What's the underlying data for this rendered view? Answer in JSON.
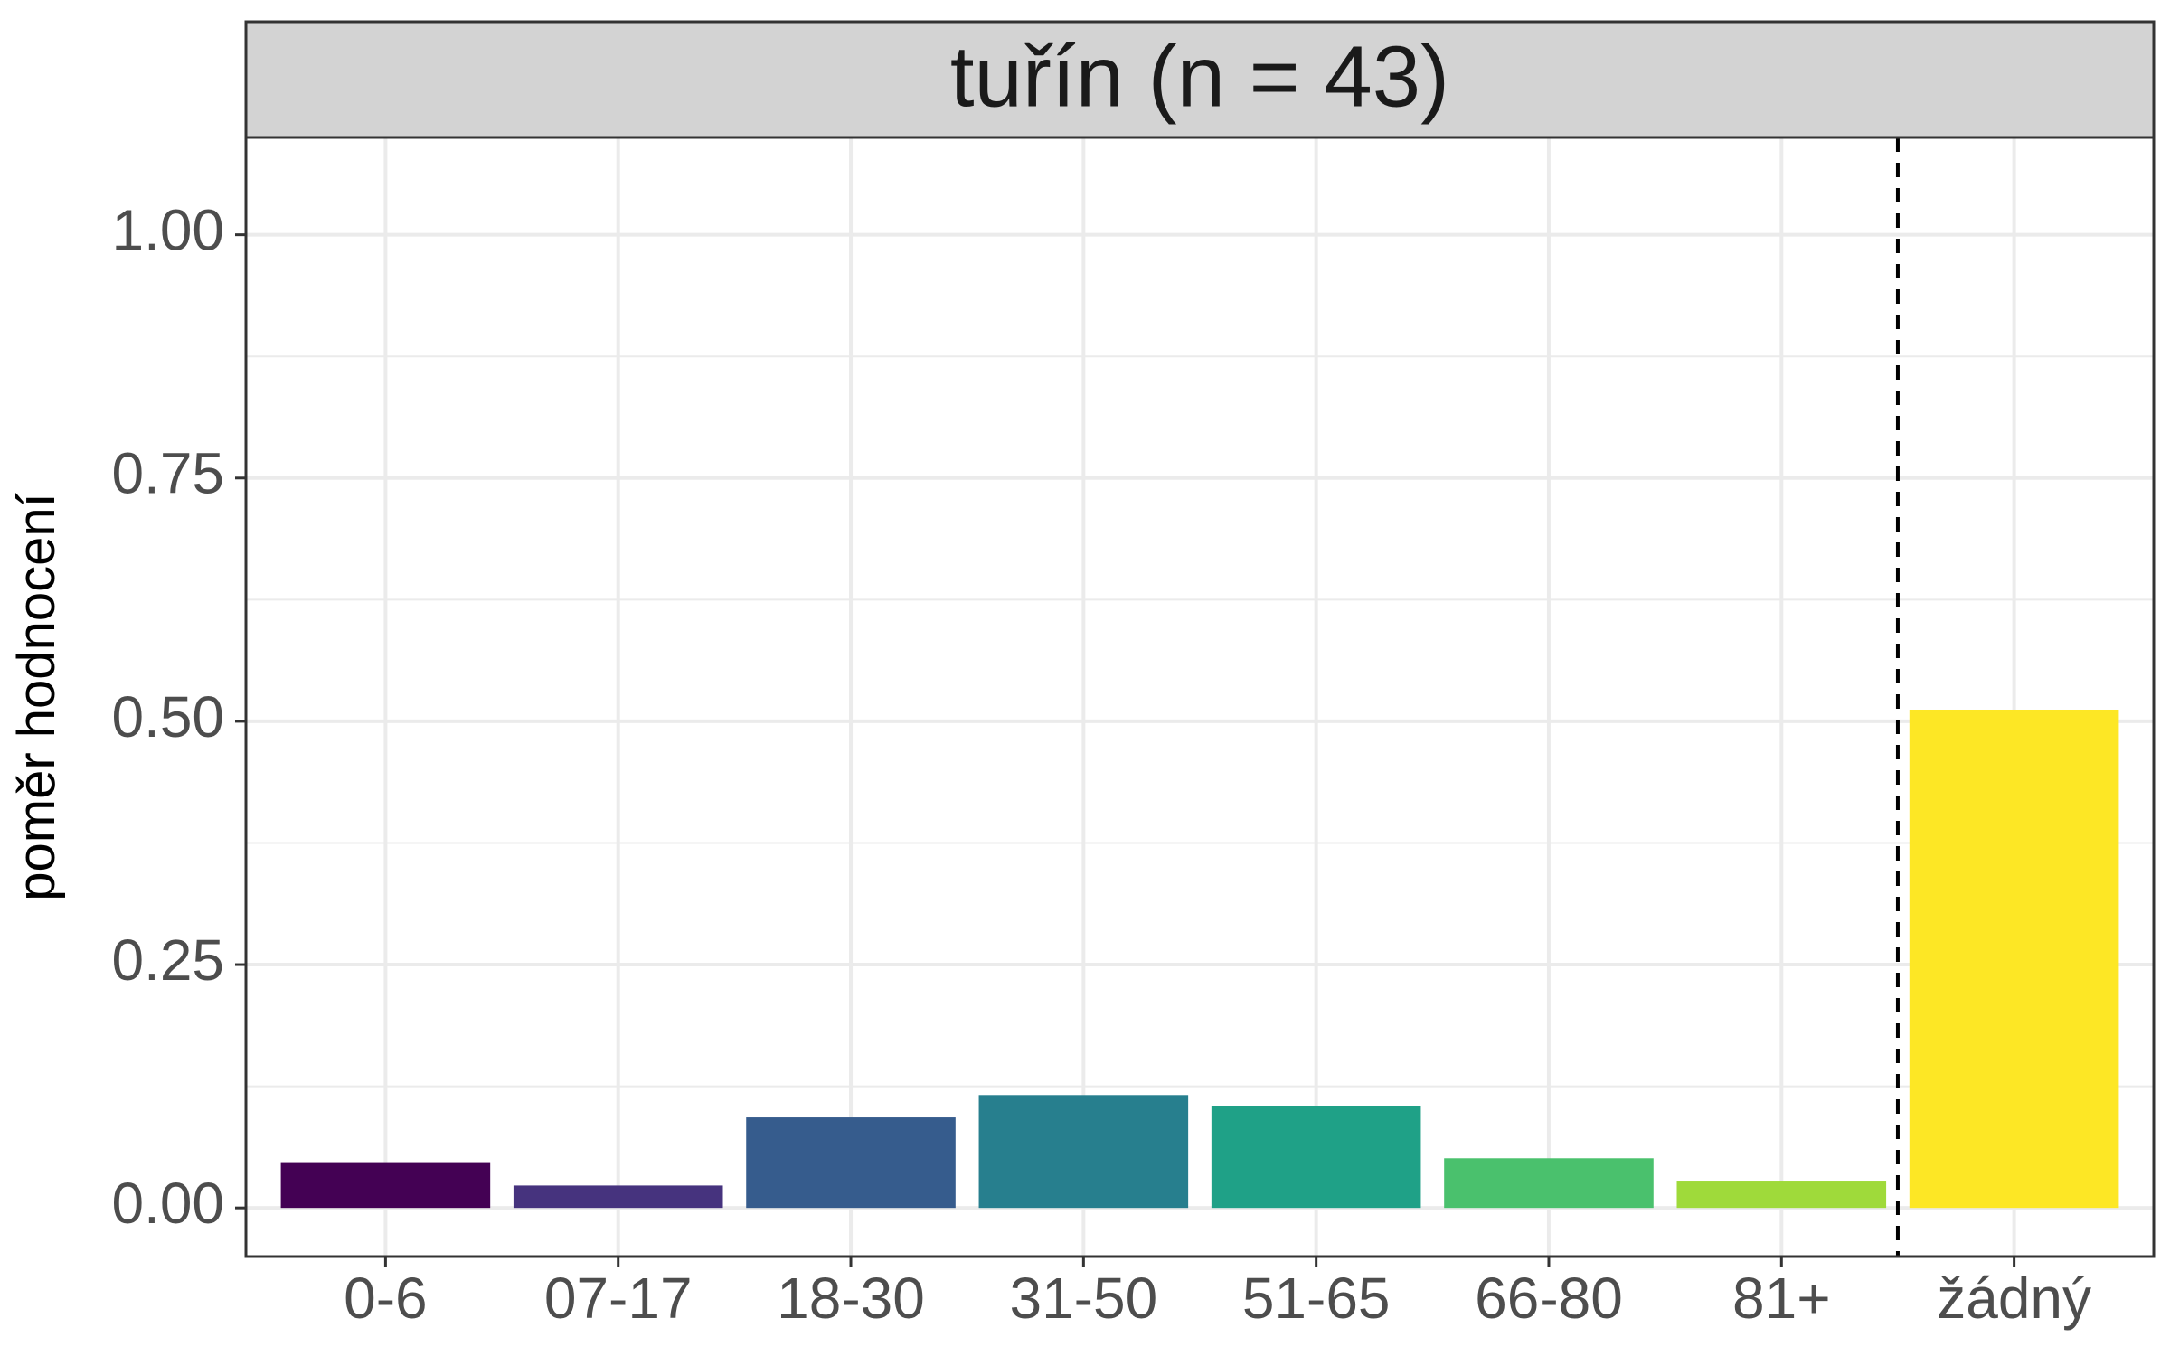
{
  "chart_data": {
    "type": "bar",
    "title": "tuřín (n = 43)",
    "xlabel": "",
    "ylabel": "poměr hodnocení",
    "ylim": [
      -0.05,
      1.1
    ],
    "yticks": [
      "0.00",
      "0.25",
      "0.50",
      "0.75",
      "1.00"
    ],
    "ytick_values": [
      0,
      0.25,
      0.5,
      0.75,
      1.0
    ],
    "categories": [
      "0-6",
      "07-17",
      "18-30",
      "31-50",
      "51-65",
      "66-80",
      "81+",
      "žádný"
    ],
    "values": [
      0.047,
      0.023,
      0.093,
      0.116,
      0.105,
      0.051,
      0.028,
      0.512
    ],
    "colors": [
      "#440154",
      "#46337E",
      "#365C8D",
      "#277F8E",
      "#1FA187",
      "#4AC16D",
      "#9FDA3A",
      "#FDE725"
    ],
    "reference_line": {
      "between_categories": [
        "81+",
        "žádný"
      ],
      "style": "dashed"
    },
    "grid": true,
    "legend": "none"
  }
}
